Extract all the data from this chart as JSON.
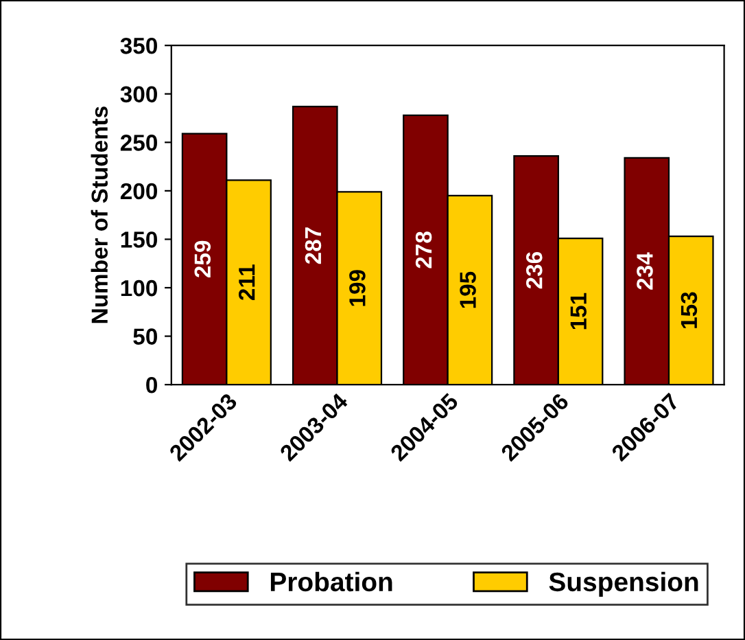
{
  "chart_data": {
    "type": "bar",
    "ylabel": "Number of Students",
    "categories": [
      "2002-03",
      "2003-04",
      "2004-05",
      "2005-06",
      "2006-07"
    ],
    "series": [
      {
        "name": "Probation",
        "color": "#800000",
        "values": [
          259,
          287,
          278,
          236,
          234
        ]
      },
      {
        "name": "Suspension",
        "color": "#ffcc00",
        "values": [
          211,
          199,
          195,
          151,
          153
        ]
      }
    ],
    "ylim": [
      0,
      350
    ],
    "yticks": [
      0,
      50,
      100,
      150,
      200,
      250,
      300,
      350
    ],
    "data_labels": true,
    "legend": "bottom",
    "grid": false
  }
}
